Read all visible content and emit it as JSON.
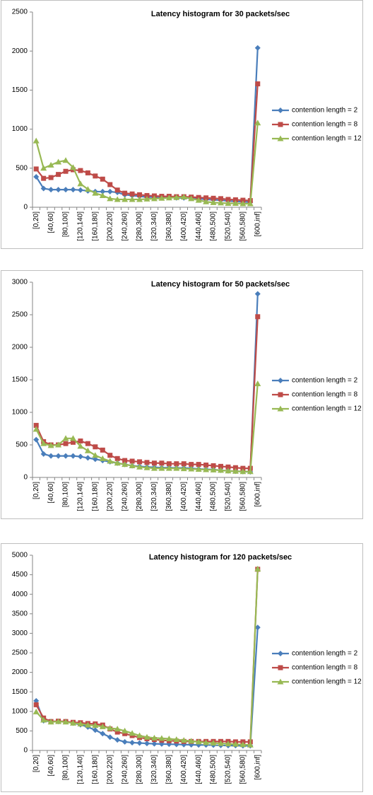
{
  "chart_data": [
    {
      "type": "line",
      "title": "Latency histogram for 30 packets/sec",
      "categories": [
        "[0,20]",
        null,
        "[40,60]",
        null,
        "[80,100]",
        null,
        "[120,140]",
        null,
        "[160,180]",
        null,
        "[200,220]",
        null,
        "[240,260]",
        null,
        "[280,300]",
        null,
        "[320,340]",
        null,
        "[360,380]",
        null,
        "[400,420]",
        null,
        "[440,460]",
        null,
        "[480,500]",
        null,
        "[520,540]",
        null,
        "[560,580]",
        null,
        "[600,inf]"
      ],
      "ylim": [
        0,
        2500
      ],
      "yticks": [
        0,
        500,
        1000,
        1500,
        2000,
        2500
      ],
      "legend": "right",
      "series": [
        {
          "name": "contention length = 2",
          "color": "#4a7ebb",
          "marker": "diamond",
          "values": [
            390,
            240,
            225,
            225,
            225,
            225,
            220,
            210,
            200,
            200,
            200,
            190,
            160,
            150,
            140,
            130,
            130,
            125,
            125,
            120,
            120,
            115,
            110,
            100,
            95,
            90,
            80,
            75,
            70,
            65,
            2040
          ]
        },
        {
          "name": "contention length = 8",
          "color": "#be4b48",
          "marker": "square",
          "values": [
            490,
            370,
            380,
            420,
            460,
            480,
            470,
            440,
            400,
            360,
            290,
            220,
            180,
            170,
            160,
            150,
            145,
            140,
            140,
            135,
            135,
            130,
            125,
            120,
            115,
            110,
            100,
            95,
            90,
            85,
            1580
          ]
        },
        {
          "name": "contention length = 12",
          "color": "#98b954",
          "marker": "triangle",
          "values": [
            850,
            500,
            540,
            580,
            600,
            510,
            300,
            230,
            180,
            150,
            110,
            100,
            100,
            100,
            100,
            105,
            110,
            115,
            120,
            125,
            130,
            110,
            90,
            70,
            60,
            55,
            50,
            50,
            45,
            45,
            1080
          ]
        }
      ]
    },
    {
      "type": "line",
      "title": "Latency histogram for 50 packets/sec",
      "categories": [
        "[0,20]",
        null,
        "[40,60]",
        null,
        "[80,100]",
        null,
        "[120,140]",
        null,
        "[160,180]",
        null,
        "[200,220]",
        null,
        "[240,260]",
        null,
        "[280,300]",
        null,
        "[320,340]",
        null,
        "[360,380]",
        null,
        "[400,420]",
        null,
        "[440,460]",
        null,
        "[480,500]",
        null,
        "[520,540]",
        null,
        "[560,580]",
        null,
        "[600,inf]"
      ],
      "ylim": [
        0,
        3000
      ],
      "yticks": [
        0,
        500,
        1000,
        1500,
        2000,
        2500,
        3000
      ],
      "legend": "right",
      "series": [
        {
          "name": "contention length = 2",
          "color": "#4a7ebb",
          "marker": "diamond",
          "values": [
            580,
            360,
            330,
            330,
            330,
            330,
            320,
            300,
            280,
            260,
            240,
            220,
            200,
            180,
            170,
            160,
            155,
            150,
            150,
            145,
            145,
            140,
            130,
            125,
            120,
            110,
            100,
            95,
            90,
            85,
            2820
          ]
        },
        {
          "name": "contention length = 8",
          "color": "#be4b48",
          "marker": "square",
          "values": [
            800,
            550,
            500,
            500,
            520,
            540,
            560,
            520,
            470,
            420,
            340,
            290,
            260,
            250,
            240,
            230,
            220,
            220,
            210,
            210,
            210,
            200,
            200,
            190,
            180,
            170,
            160,
            150,
            140,
            140,
            2470
          ]
        },
        {
          "name": "contention length = 12",
          "color": "#98b954",
          "marker": "triangle",
          "values": [
            740,
            520,
            490,
            500,
            600,
            600,
            480,
            410,
            340,
            290,
            250,
            220,
            200,
            180,
            160,
            150,
            140,
            140,
            140,
            140,
            135,
            130,
            125,
            120,
            115,
            110,
            100,
            95,
            90,
            90,
            1440
          ]
        }
      ]
    },
    {
      "type": "line",
      "title": "Latency histogram for 120 packets/sec",
      "categories": [
        "[0,20]",
        null,
        "[40,60]",
        null,
        "[80,100]",
        null,
        "[120,140]",
        null,
        "[160,180]",
        null,
        "[200,220]",
        null,
        "[240,260]",
        null,
        "[280,300]",
        null,
        "[320,340]",
        null,
        "[360,380]",
        null,
        "[400,420]",
        null,
        "[440,460]",
        null,
        "[480,500]",
        null,
        "[520,540]",
        null,
        "[560,580]",
        null,
        "[600,inf]"
      ],
      "ylim": [
        0,
        5000
      ],
      "yticks": [
        0,
        500,
        1000,
        1500,
        2000,
        2500,
        3000,
        3500,
        4000,
        4500,
        5000
      ],
      "legend": "right",
      "series": [
        {
          "name": "contention length = 2",
          "color": "#4a7ebb",
          "marker": "diamond",
          "values": [
            1270,
            760,
            740,
            740,
            740,
            700,
            660,
            600,
            520,
            430,
            340,
            270,
            220,
            200,
            190,
            180,
            170,
            165,
            160,
            155,
            150,
            145,
            140,
            140,
            135,
            130,
            125,
            125,
            120,
            120,
            3150
          ]
        },
        {
          "name": "contention length = 8",
          "color": "#be4b48",
          "marker": "square",
          "values": [
            1170,
            830,
            740,
            750,
            740,
            720,
            710,
            690,
            680,
            650,
            550,
            470,
            430,
            380,
            330,
            300,
            280,
            260,
            250,
            240,
            230,
            230,
            230,
            230,
            230,
            230,
            230,
            220,
            220,
            220,
            4640
          ]
        },
        {
          "name": "contention length = 12",
          "color": "#98b954",
          "marker": "triangle",
          "values": [
            990,
            780,
            730,
            740,
            730,
            700,
            680,
            650,
            640,
            610,
            570,
            550,
            500,
            440,
            380,
            340,
            320,
            310,
            300,
            280,
            260,
            240,
            220,
            200,
            190,
            180,
            170,
            160,
            150,
            140,
            4650
          ]
        }
      ]
    }
  ]
}
